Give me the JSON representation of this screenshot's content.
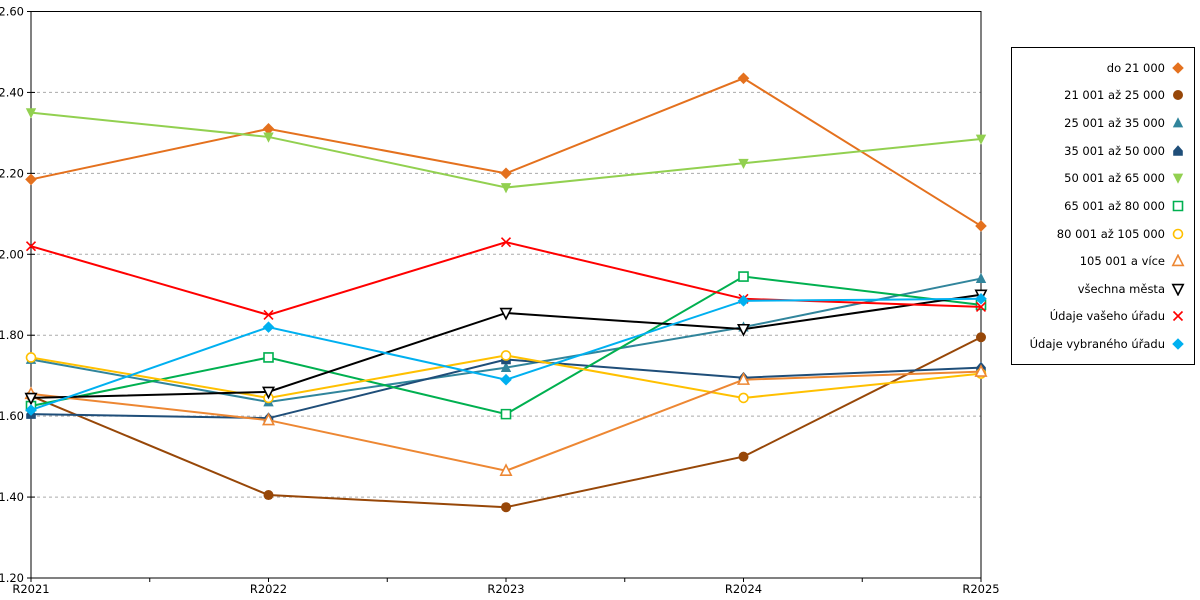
{
  "chart_data": {
    "type": "line",
    "title": "",
    "xlabel": "",
    "ylabel": "",
    "grid": "horizontal-dashed",
    "legend_position": "right",
    "categories": [
      "R2021",
      "R2022",
      "R2023",
      "R2024",
      "R2025"
    ],
    "y_axis": {
      "min": 1.2,
      "max": 2.6,
      "step": 0.2,
      "tick_labels": [
        "1.20",
        "1.40",
        "1.60",
        "1.80",
        "2.00",
        "2.20",
        "2.40",
        "2.60"
      ]
    },
    "series": [
      {
        "name": "do 21 000",
        "color": "#E4711E",
        "marker": "diamond-filled",
        "values": [
          2.185,
          2.31,
          2.2,
          2.435,
          2.07
        ]
      },
      {
        "name": "21 001 až 25 000",
        "color": "#974708",
        "marker": "circle-filled",
        "values": [
          1.65,
          1.405,
          1.375,
          1.5,
          1.795
        ]
      },
      {
        "name": "25 001 až 35 000",
        "color": "#31859C",
        "marker": "triangle-up-filled",
        "values": [
          1.74,
          1.635,
          1.72,
          1.82,
          1.94
        ]
      },
      {
        "name": "35 001 až 50 000",
        "color": "#1F4E79",
        "marker": "pentagon-filled",
        "values": [
          1.605,
          1.595,
          1.74,
          1.695,
          1.72
        ]
      },
      {
        "name": "50 001 až 65 000",
        "color": "#92D050",
        "marker": "triangle-down-filled",
        "values": [
          2.35,
          2.29,
          2.165,
          2.225,
          2.285
        ]
      },
      {
        "name": "65 001 až 80 000",
        "color": "#00B050",
        "marker": "square-open",
        "values": [
          1.625,
          1.745,
          1.605,
          1.945,
          1.875
        ]
      },
      {
        "name": "80 001 až 105 000",
        "color": "#FFC000",
        "marker": "circle-open",
        "values": [
          1.745,
          1.645,
          1.75,
          1.645,
          1.705
        ]
      },
      {
        "name": "105 001 a více",
        "color": "#ED8733",
        "marker": "triangle-up-open",
        "values": [
          1.655,
          1.59,
          1.465,
          1.69,
          1.71
        ]
      },
      {
        "name": "všechna města",
        "color": "#000000",
        "marker": "triangle-down-open",
        "values": [
          1.645,
          1.66,
          1.855,
          1.815,
          1.9
        ]
      },
      {
        "name": "Údaje vašeho úřadu",
        "color": "#FF0000",
        "marker": "x",
        "values": [
          2.02,
          1.85,
          2.03,
          1.89,
          1.87
        ]
      },
      {
        "name": "Údaje vybraného úřadu",
        "color": "#00B0F0",
        "marker": "diamond-filled",
        "values": [
          1.615,
          1.82,
          1.69,
          1.885,
          1.89
        ]
      }
    ]
  },
  "colors": {
    "background": "#FFFFFF",
    "plot_border": "#000000",
    "gridline": "#ABABAB",
    "tick_text": "#000000"
  }
}
